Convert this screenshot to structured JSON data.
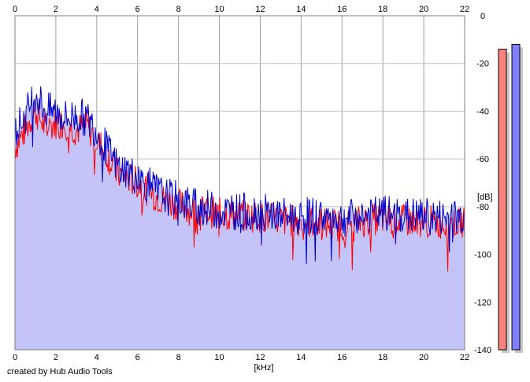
{
  "credit": "created by Hub Audio Tools",
  "chart_data": {
    "type": "line",
    "title": "",
    "xlabel": "[kHz]",
    "ylabel": "[dB]",
    "xlim": [
      0,
      22
    ],
    "ylim": [
      -140,
      0
    ],
    "x_ticks": [
      0,
      2,
      4,
      6,
      8,
      10,
      12,
      14,
      16,
      18,
      20,
      22
    ],
    "y_ticks": [
      0,
      -20,
      -40,
      -60,
      -80,
      -100,
      -120,
      -140
    ],
    "x_tick_labels": [
      "0",
      "2",
      "4",
      "6",
      "8",
      "10",
      "12",
      "14",
      "16",
      "18",
      "20",
      "22"
    ],
    "y_tick_labels": [
      "0",
      "-20",
      "-40",
      "-60",
      "-80",
      "-100",
      "-120",
      "-140"
    ],
    "grid": true,
    "fill_color": "#c4c4f8",
    "series": [
      {
        "color": "#ff0000",
        "x": [
          0,
          0.5,
          1,
          1.5,
          2,
          2.5,
          3,
          3.5,
          4,
          4.5,
          5,
          5.5,
          6,
          6.5,
          7,
          7.5,
          8,
          8.5,
          9,
          9.5,
          10,
          11,
          12,
          13,
          14,
          15,
          16,
          17,
          18,
          19,
          20,
          21,
          22
        ],
        "y": [
          -55,
          -48,
          -40,
          -47,
          -45,
          -45,
          -48,
          -46,
          -52,
          -58,
          -66,
          -68,
          -70,
          -73,
          -76,
          -78,
          -79,
          -81,
          -82,
          -82,
          -83,
          -84,
          -84,
          -86,
          -86,
          -87,
          -88,
          -86,
          -85,
          -86,
          -86,
          -87,
          -87
        ]
      },
      {
        "color": "#0000cc",
        "x": [
          0,
          0.5,
          1,
          1.5,
          2,
          2.5,
          3,
          3.5,
          4,
          4.5,
          5,
          5.5,
          6,
          6.5,
          7,
          7.5,
          8,
          8.5,
          9,
          9.5,
          10,
          11,
          12,
          13,
          14,
          15,
          16,
          17,
          18,
          19,
          20,
          21,
          22
        ],
        "y": [
          -48,
          -42,
          -32,
          -40,
          -40,
          -43,
          -42,
          -43,
          -48,
          -56,
          -63,
          -65,
          -68,
          -71,
          -74,
          -76,
          -77,
          -79,
          -80,
          -81,
          -82,
          -82,
          -82,
          -84,
          -84,
          -84,
          -85,
          -84,
          -83,
          -84,
          -84,
          -85,
          -84
        ]
      }
    ],
    "level_meters": [
      {
        "color": "#ff8080",
        "value": -14
      },
      {
        "color": "#8080ff",
        "value": -12
      }
    ]
  }
}
